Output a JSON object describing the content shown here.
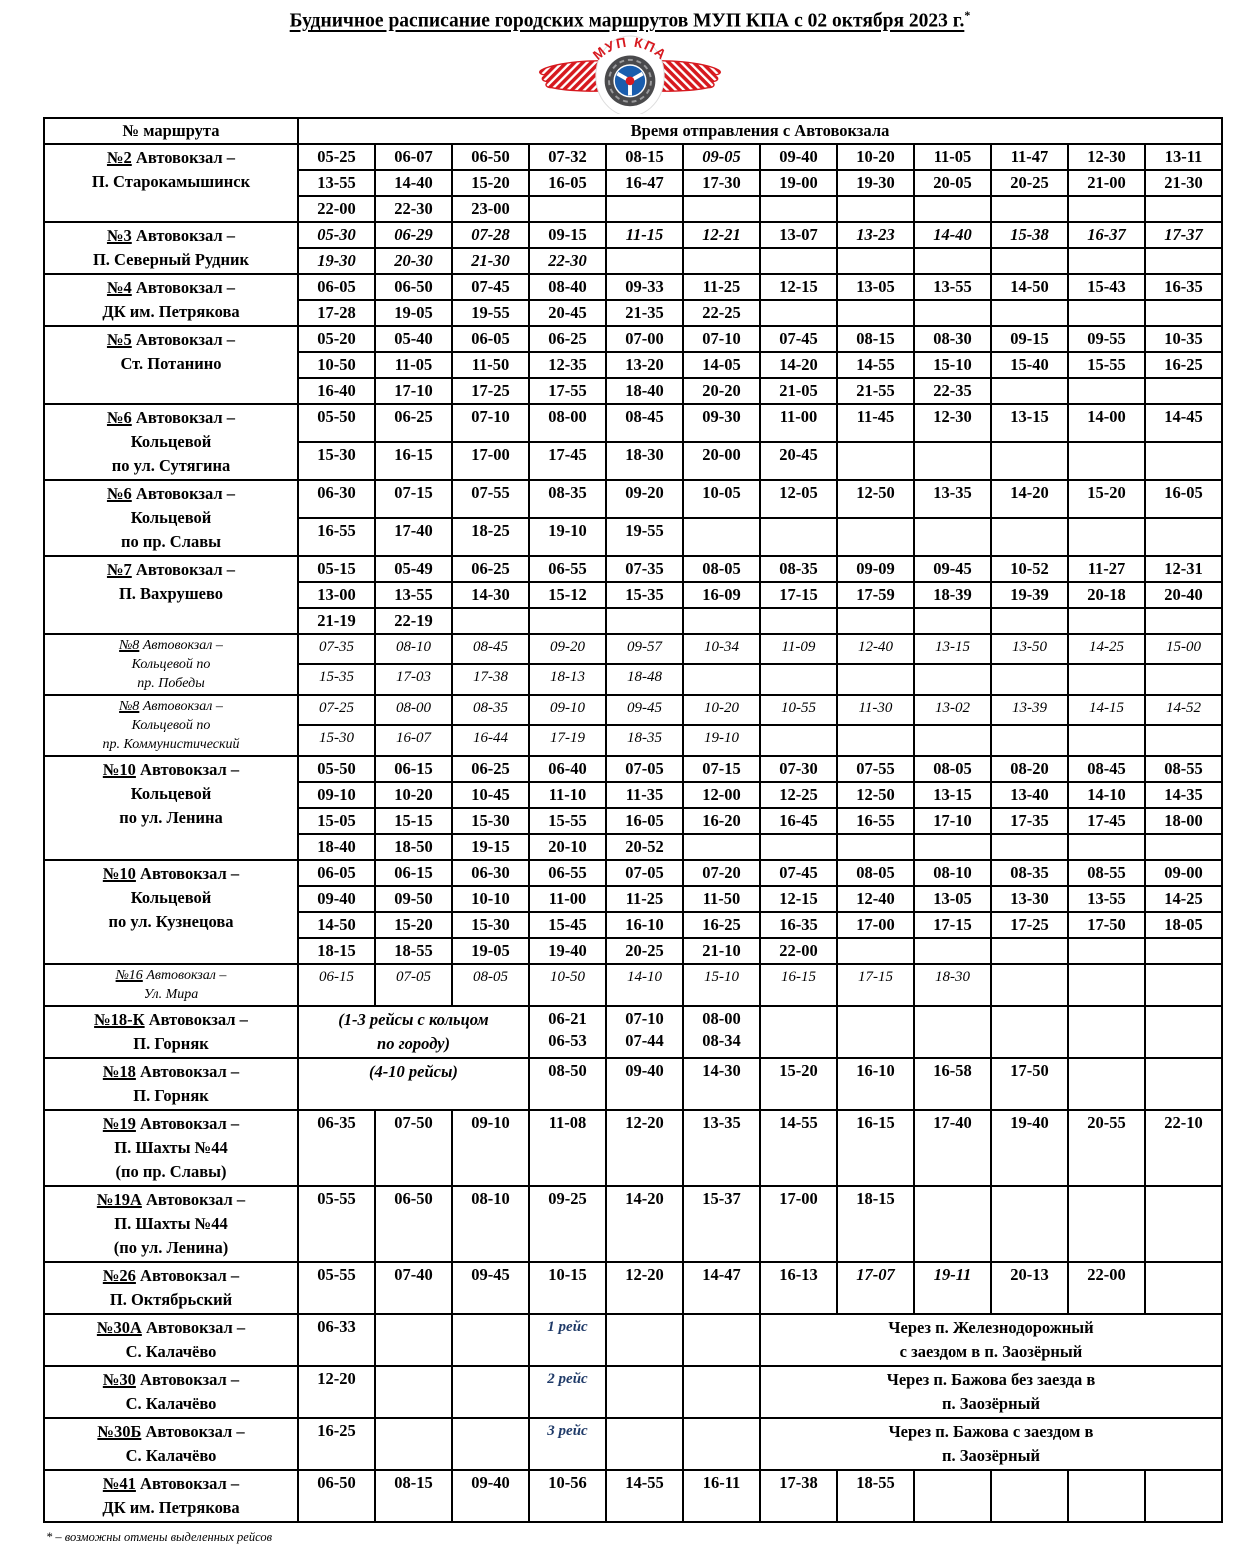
{
  "title": {
    "text": "Будничное расписание городских маршрутов МУП КПА с 02 октября 2023 г.",
    "asterisk": "*"
  },
  "logo": {
    "name": "МУП КПА",
    "colors": {
      "red": "#d7191f",
      "blue": "#1a5dad",
      "dark": "#4a4a4c"
    }
  },
  "table": {
    "header": {
      "route_col": "№ маршрута",
      "times_col": "Время отправления  с Автовокзала"
    },
    "routes": [
      {
        "name": [
          "№2 Автовокзал –",
          "П. Старокамышинск"
        ],
        "style": "bold",
        "rows": [
          [
            "05-25",
            "06-07",
            "06-50",
            "07-32",
            "08-15",
            "i:09-05",
            "09-40",
            "10-20",
            "11-05",
            "11-47",
            "12-30",
            "13-11"
          ],
          [
            "13-55",
            "14-40",
            "15-20",
            "16-05",
            "16-47",
            "17-30",
            "19-00",
            "19-30",
            "20-05",
            "20-25",
            "21-00",
            "21-30"
          ],
          [
            "22-00",
            "22-30",
            "23-00"
          ]
        ]
      },
      {
        "name": [
          "№3 Автовокзал –",
          "П. Северный Рудник"
        ],
        "style": "bold",
        "rows": [
          [
            "i:05-30",
            "i:06-29",
            "i:07-28",
            "09-15",
            "i:11-15",
            "i:12-21",
            "13-07",
            "i:13-23",
            "i:14-40",
            "i:15-38",
            "i:16-37",
            "i:17-37"
          ],
          [
            "i:19-30",
            "i:20-30",
            "i:21-30",
            "i:22-30"
          ]
        ]
      },
      {
        "name": [
          "№4 Автовокзал –",
          "ДК им. Петрякова"
        ],
        "style": "bold",
        "rows": [
          [
            "06-05",
            "06-50",
            "07-45",
            "08-40",
            "09-33",
            "11-25",
            "12-15",
            "13-05",
            "13-55",
            "14-50",
            "15-43",
            "16-35"
          ],
          [
            "17-28",
            "19-05",
            "19-55",
            "20-45",
            "21-35",
            "22-25"
          ]
        ]
      },
      {
        "name": [
          "№5 Автовокзал –",
          "Ст. Потанино"
        ],
        "style": "bold",
        "rows": [
          [
            "05-20",
            "05-40",
            "06-05",
            "06-25",
            "07-00",
            "07-10",
            "07-45",
            "08-15",
            "08-30",
            "09-15",
            "09-55",
            "10-35"
          ],
          [
            "10-50",
            "11-05",
            "11-50",
            "12-35",
            "13-20",
            "14-05",
            "14-20",
            "14-55",
            "15-10",
            "15-40",
            "15-55",
            "16-25"
          ],
          [
            "16-40",
            "17-10",
            "17-25",
            "17-55",
            "18-40",
            "20-20",
            "21-05",
            "21-55",
            "22-35"
          ]
        ]
      },
      {
        "name": [
          "№6 Автовокзал –",
          "Кольцевой",
          "по ул. Сутягина"
        ],
        "style": "bold",
        "rows": [
          [
            "05-50",
            "06-25",
            "07-10",
            "08-00",
            "08-45",
            "09-30",
            "11-00",
            "11-45",
            "12-30",
            "13-15",
            "14-00",
            "14-45"
          ],
          [
            "15-30",
            "16-15",
            "17-00",
            "17-45",
            "18-30",
            "20-00",
            "20-45"
          ]
        ]
      },
      {
        "name": [
          "№6 Автовокзал –",
          "Кольцевой",
          "по пр. Славы"
        ],
        "style": "bold",
        "rows": [
          [
            "06-30",
            "07-15",
            "07-55",
            "08-35",
            "09-20",
            "10-05",
            "12-05",
            "12-50",
            "13-35",
            "14-20",
            "15-20",
            "16-05"
          ],
          [
            "16-55",
            "17-40",
            "18-25",
            "19-10",
            "19-55"
          ]
        ]
      },
      {
        "name": [
          "№7 Автовокзал –",
          "П. Вахрушево"
        ],
        "style": "bold",
        "rows": [
          [
            "05-15",
            "05-49",
            "06-25",
            "06-55",
            "07-35",
            "08-05",
            "08-35",
            "09-09",
            "09-45",
            "10-52",
            "11-27",
            "12-31"
          ],
          [
            "13-00",
            "13-55",
            "14-30",
            "15-12",
            "15-35",
            "16-09",
            "17-15",
            "17-59",
            "18-39",
            "19-39",
            "20-18",
            "20-40"
          ],
          [
            "21-19",
            "22-19"
          ]
        ]
      },
      {
        "name": [
          "№8 Автовокзал –",
          "Кольцевой по",
          "пр. Победы"
        ],
        "style": "lt",
        "rows": [
          [
            "07-35",
            "08-10",
            "08-45",
            "09-20",
            "09-57",
            "10-34",
            "11-09",
            "12-40",
            "13-15",
            "13-50",
            "14-25",
            "15-00"
          ],
          [
            "15-35",
            "17-03",
            "17-38",
            "18-13",
            "18-48"
          ]
        ]
      },
      {
        "name": [
          "№8 Автовокзал –",
          "Кольцевой по",
          "пр. Коммунистический"
        ],
        "style": "lt",
        "rows": [
          [
            "07-25",
            "08-00",
            "08-35",
            "09-10",
            "09-45",
            "10-20",
            "10-55",
            "11-30",
            "13-02",
            "13-39",
            "14-15",
            "14-52"
          ],
          [
            "15-30",
            "16-07",
            "16-44",
            "17-19",
            "18-35",
            "19-10"
          ]
        ]
      },
      {
        "name": [
          "№10 Автовокзал –",
          "Кольцевой",
          "по ул. Ленина"
        ],
        "style": "bold",
        "rows": [
          [
            "05-50",
            "06-15",
            "06-25",
            "06-40",
            "07-05",
            "07-15",
            "07-30",
            "07-55",
            "08-05",
            "08-20",
            "08-45",
            "08-55"
          ],
          [
            "09-10",
            "10-20",
            "10-45",
            "11-10",
            "11-35",
            "12-00",
            "12-25",
            "12-50",
            "13-15",
            "13-40",
            "14-10",
            "14-35"
          ],
          [
            "15-05",
            "15-15",
            "15-30",
            "15-55",
            "16-05",
            "16-20",
            "16-45",
            "16-55",
            "17-10",
            "17-35",
            "17-45",
            "18-00"
          ],
          [
            "18-40",
            "18-50",
            "19-15",
            "20-10",
            "20-52"
          ]
        ]
      },
      {
        "name": [
          "№10 Автовокзал –",
          "Кольцевой",
          "по ул. Кузнецова"
        ],
        "style": "bold",
        "rows": [
          [
            "06-05",
            "06-15",
            "06-30",
            "06-55",
            "07-05",
            "07-20",
            "07-45",
            "08-05",
            "08-10",
            "08-35",
            "08-55",
            "09-00"
          ],
          [
            "09-40",
            "09-50",
            "10-10",
            "11-00",
            "11-25",
            "11-50",
            "12-15",
            "12-40",
            "13-05",
            "13-30",
            "13-55",
            "14-25"
          ],
          [
            "14-50",
            "15-20",
            "15-30",
            "15-45",
            "16-10",
            "16-25",
            "16-35",
            "17-00",
            "17-15",
            "17-25",
            "17-50",
            "18-05"
          ],
          [
            "18-15",
            "18-55",
            "19-05",
            "19-40",
            "20-25",
            "21-10",
            "22-00"
          ]
        ]
      },
      {
        "name": [
          "№16 Автовокзал –",
          "Ул. Мира"
        ],
        "style": "lt",
        "rows": [
          [
            "06-15",
            "07-05",
            "08-05",
            "10-50",
            "14-10",
            "15-10",
            "16-15",
            "17-15",
            "18-30"
          ]
        ]
      },
      {
        "name": [
          "№18-К Автовокзал –",
          "П. Горняк"
        ],
        "style": "bold",
        "rows": [
          [
            {
              "span": 3,
              "cls": "note",
              "text": "(1-3 рейсы с кольцом|по городу)"
            },
            "06-21|06-53",
            "07-10|07-44",
            "08-00|08-34"
          ]
        ]
      },
      {
        "name": [
          "№18 Автовокзал –",
          "П. Горняк"
        ],
        "style": "bold",
        "rows": [
          [
            {
              "span": 3,
              "cls": "note",
              "text": "(4-10 рейсы)"
            },
            "08-50",
            "09-40",
            "14-30",
            "15-20",
            "16-10",
            "16-58",
            "17-50"
          ]
        ]
      },
      {
        "name": [
          "№19 Автовокзал –",
          "П. Шахты №44",
          "(по пр. Славы)"
        ],
        "style": "bold",
        "valign": "middle",
        "rows": [
          [
            "06-35",
            "07-50",
            "09-10",
            "11-08",
            "12-20",
            "13-35",
            "14-55",
            "16-15",
            "17-40",
            "19-40",
            "20-55",
            "22-10"
          ]
        ]
      },
      {
        "name": [
          "№19А Автовокзал –",
          "П. Шахты №44",
          "(по ул. Ленина)"
        ],
        "style": "bold",
        "valign": "middle",
        "rows": [
          [
            "05-55",
            "06-50",
            "08-10",
            "09-25",
            "14-20",
            "15-37",
            "17-00",
            "18-15"
          ]
        ]
      },
      {
        "name": [
          "№26 Автовокзал –",
          "П. Октябрьский"
        ],
        "style": "bold",
        "rows": [
          [
            "05-55",
            "07-40",
            "09-45",
            "10-15",
            "12-20",
            "14-47",
            "16-13",
            "i:17-07",
            "i:19-11",
            "20-13",
            "22-00"
          ]
        ]
      },
      {
        "name": [
          "№30А Автовокзал –",
          "С. Калачёво"
        ],
        "style": "bold",
        "rows": [
          [
            "06-33",
            "",
            "",
            {
              "cls": "trip",
              "text": "1 рейс"
            },
            "",
            "",
            {
              "span": 6,
              "cls": "info",
              "text": "Через п. Железнодорожный|с заездом в п. Заозёрный"
            }
          ]
        ]
      },
      {
        "name": [
          "№30 Автовокзал –",
          "С. Калачёво"
        ],
        "style": "bold",
        "rows": [
          [
            "12-20",
            "",
            "",
            {
              "cls": "trip",
              "text": "2 рейс"
            },
            "",
            "",
            {
              "span": 6,
              "cls": "info",
              "text": "Через п. Бажова без заезда в|п. Заозёрный"
            }
          ]
        ]
      },
      {
        "name": [
          "№30Б Автовокзал –",
          "С. Калачёво"
        ],
        "style": "bold",
        "rows": [
          [
            "16-25",
            "",
            "",
            {
              "cls": "trip",
              "text": "3 рейс"
            },
            "",
            "",
            {
              "span": 6,
              "cls": "info",
              "text": "Через п. Бажова с заездом в|п. Заозёрный"
            }
          ]
        ]
      },
      {
        "name": [
          "№41 Автовокзал –",
          "ДК им. Петрякова"
        ],
        "style": "bold",
        "rows": [
          [
            "06-50",
            "08-15",
            "09-40",
            "10-56",
            "14-55",
            "16-11",
            "17-38",
            "18-55"
          ]
        ]
      }
    ]
  },
  "footnote": "* – возможны отмены выделенных рейсов"
}
